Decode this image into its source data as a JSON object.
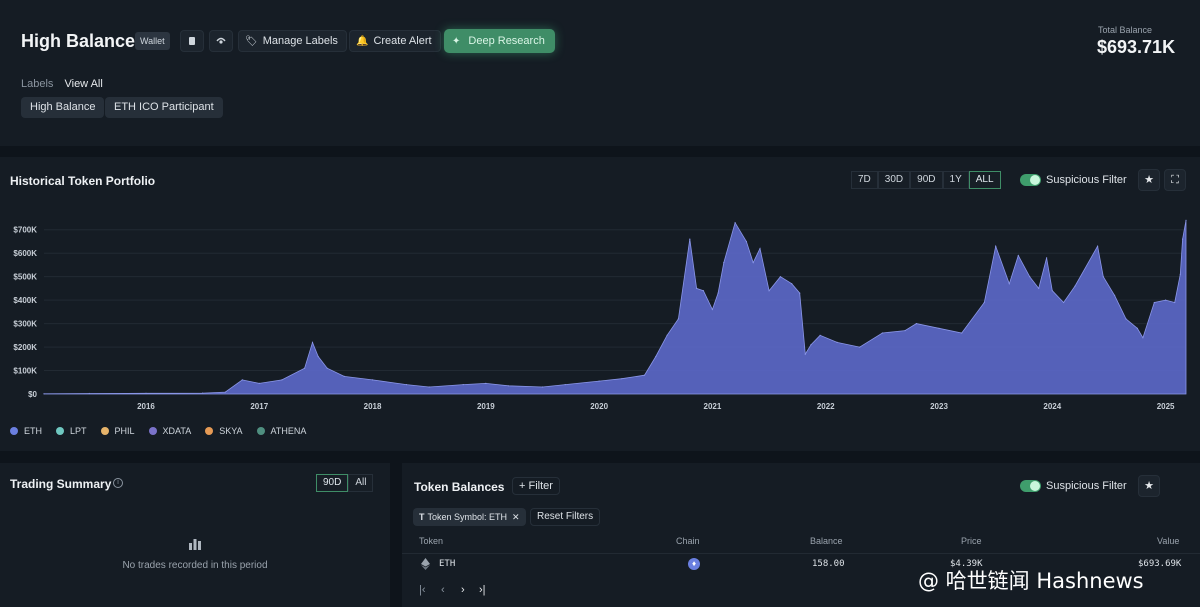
{
  "header": {
    "title": "High Balance",
    "badge": "Wallet",
    "manage_labels": "Manage Labels",
    "create_alert": "Create Alert",
    "deep_research": "Deep Research",
    "total_label": "Total Balance",
    "total_value": "$693.71K",
    "labels_label": "Labels",
    "view_all": "View All",
    "tags": [
      "High Balance",
      "ETH ICO Participant"
    ]
  },
  "portfolio": {
    "title": "Historical Token Portfolio",
    "ranges": [
      "7D",
      "30D",
      "90D",
      "1Y",
      "ALL"
    ],
    "active_range": "ALL",
    "suspicious_filter": "Suspicious Filter",
    "suspicious_filter_on": true,
    "legend": [
      {
        "name": "ETH",
        "color": "#6b7fe0"
      },
      {
        "name": "LPT",
        "color": "#6fc7c0"
      },
      {
        "name": "PHIL",
        "color": "#e6b36a"
      },
      {
        "name": "XDATA",
        "color": "#7a72c9"
      },
      {
        "name": "SKYA",
        "color": "#e59a55"
      },
      {
        "name": "ATHENA",
        "color": "#4f8f80"
      }
    ]
  },
  "chart_data": {
    "type": "area",
    "title": "Historical Token Portfolio",
    "y_tick_labels": [
      "$0",
      "$100K",
      "$200K",
      "$300K",
      "$400K",
      "$500K",
      "$600K",
      "$700K"
    ],
    "ylim": [
      0,
      750000
    ],
    "x_tick_labels": [
      "2016",
      "2017",
      "2018",
      "2019",
      "2020",
      "2021",
      "2022",
      "2023",
      "2024",
      "2025"
    ],
    "xlim": [
      2015.6,
      2025.68
    ],
    "grid": true,
    "legend_position": "bottom-left",
    "series": [
      {
        "name": "ETH",
        "color": "#5b67c7",
        "x": [
          2015.6,
          2016.0,
          2016.5,
          2017.0,
          2017.2,
          2017.35,
          2017.5,
          2017.7,
          2017.9,
          2017.97,
          2018.02,
          2018.1,
          2018.25,
          2018.5,
          2018.8,
          2019.0,
          2019.3,
          2019.5,
          2019.7,
          2020.0,
          2020.2,
          2020.5,
          2020.7,
          2020.9,
          2021.0,
          2021.1,
          2021.2,
          2021.3,
          2021.36,
          2021.42,
          2021.5,
          2021.55,
          2021.6,
          2021.7,
          2021.8,
          2021.86,
          2021.92,
          2022.0,
          2022.1,
          2022.2,
          2022.27,
          2022.32,
          2022.37,
          2022.45,
          2022.6,
          2022.8,
          2023.0,
          2023.2,
          2023.3,
          2023.5,
          2023.7,
          2023.9,
          2024.0,
          2024.12,
          2024.2,
          2024.3,
          2024.38,
          2024.45,
          2024.5,
          2024.6,
          2024.7,
          2024.9,
          2024.95,
          2025.05,
          2025.15,
          2025.25,
          2025.3,
          2025.4,
          2025.5,
          2025.58,
          2025.63,
          2025.65,
          2025.68
        ],
        "values": [
          1000,
          2000,
          3000,
          4000,
          8000,
          60000,
          45000,
          60000,
          110000,
          220000,
          160000,
          110000,
          75000,
          60000,
          40000,
          30000,
          40000,
          45000,
          35000,
          30000,
          40000,
          55000,
          65000,
          80000,
          160000,
          250000,
          320000,
          660000,
          450000,
          440000,
          360000,
          430000,
          560000,
          730000,
          650000,
          560000,
          620000,
          440000,
          500000,
          470000,
          430000,
          170000,
          210000,
          250000,
          220000,
          200000,
          260000,
          270000,
          300000,
          280000,
          260000,
          390000,
          630000,
          470000,
          590000,
          500000,
          450000,
          580000,
          440000,
          390000,
          460000,
          630000,
          500000,
          420000,
          320000,
          280000,
          240000,
          390000,
          400000,
          390000,
          510000,
          660000,
          740000
        ]
      }
    ]
  },
  "trading": {
    "title": "Trading Summary",
    "ranges": [
      "90D",
      "All"
    ],
    "empty_text": "No trades recorded in this period"
  },
  "balances": {
    "title": "Token Balances",
    "filter_btn": "+ Filter",
    "suspicious_filter": "Suspicious Filter",
    "chip": "Token Symbol: ETH",
    "reset": "Reset Filters",
    "columns": [
      "Token",
      "Chain",
      "Balance",
      "Price",
      "Value"
    ],
    "rows": [
      {
        "token": "ETH",
        "balance": "158.00",
        "price": "$4.39K",
        "value": "$693.69K"
      }
    ],
    "pager": [
      "|‹",
      "‹",
      "›",
      "›|"
    ]
  },
  "watermark": "@ 哈世链闻 Hashnews"
}
